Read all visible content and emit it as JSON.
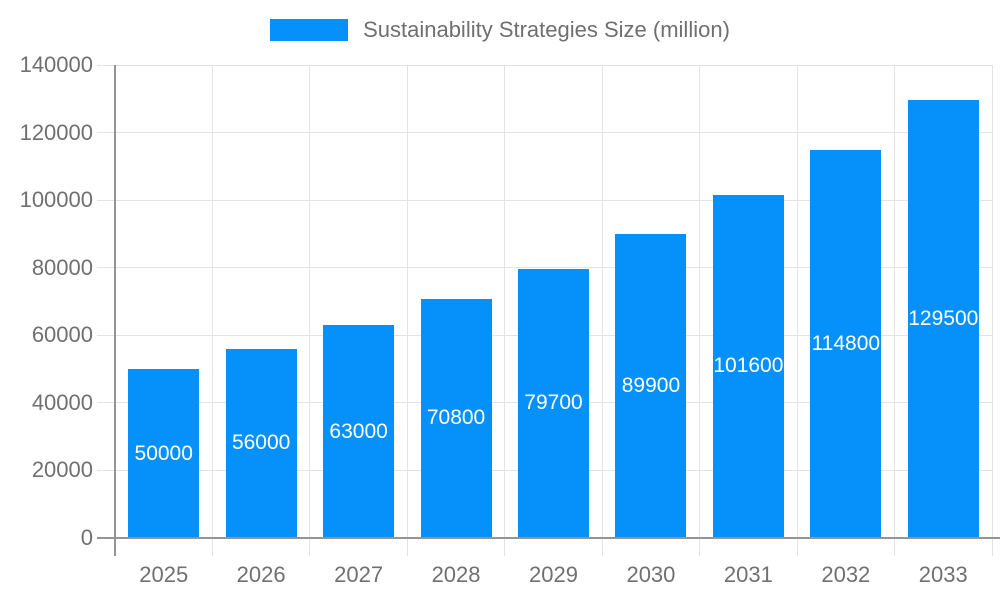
{
  "chart_data": {
    "type": "bar",
    "title": "",
    "legend": {
      "label": "Sustainability Strategies Size (million)",
      "position": "top-center"
    },
    "categories": [
      "2025",
      "2026",
      "2027",
      "2028",
      "2029",
      "2030",
      "2031",
      "2032",
      "2033"
    ],
    "series": [
      {
        "name": "Sustainability Strategies Size (million)",
        "values": [
          50000,
          56000,
          63000,
          70800,
          79700,
          89900,
          101600,
          114800,
          129500
        ]
      }
    ],
    "value_labels": [
      "50000",
      "56000",
      "63000",
      "70800",
      "79700",
      "89900",
      "101600",
      "114800",
      "129500"
    ],
    "xlabel": "",
    "ylabel": "",
    "ylim": [
      0,
      140000
    ],
    "yticks": [
      0,
      20000,
      40000,
      60000,
      80000,
      100000,
      120000,
      140000
    ],
    "ytick_labels": [
      "0",
      "20000",
      "40000",
      "60000",
      "80000",
      "100000",
      "120000",
      "140000"
    ],
    "grid": true
  },
  "colors": {
    "bar": "#0691fa",
    "grid": "#e3e3e3",
    "axis": "#949494",
    "tick_text": "#707070",
    "legend_text": "#6f6f6f",
    "value_text": "#ffffff",
    "background": "#ffffff"
  }
}
